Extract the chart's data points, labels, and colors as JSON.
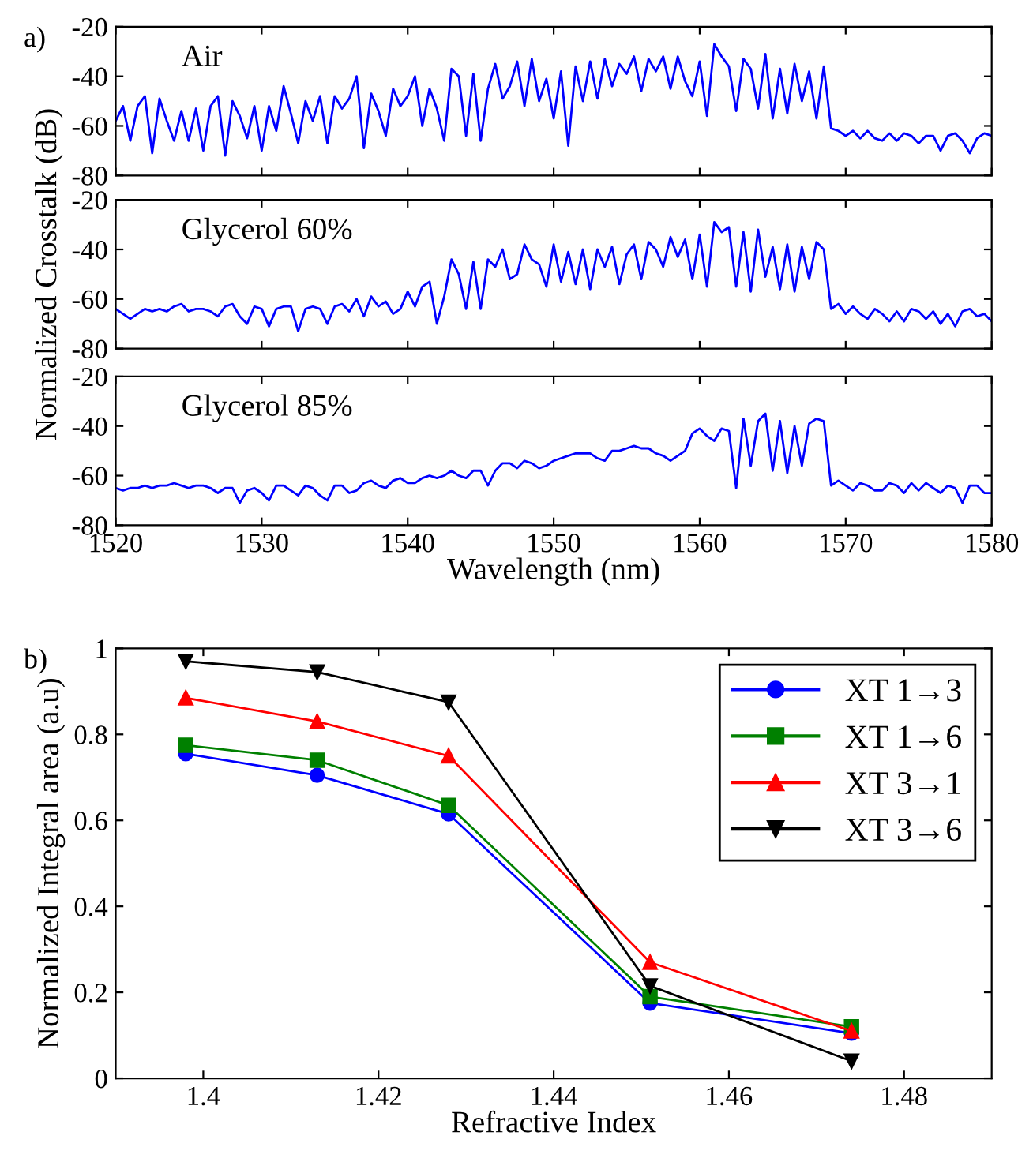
{
  "chart_data": [
    {
      "type": "line",
      "annotations": [
        "a)",
        "Air"
      ],
      "xlim": [
        1520,
        1580
      ],
      "ylim": [
        -80,
        -20
      ],
      "xticks": [
        1520,
        1530,
        1540,
        1550,
        1560,
        1570,
        1580
      ],
      "yticks": [
        -80,
        -60,
        -40,
        -20
      ],
      "tick_labels": "y",
      "grid": false,
      "legend": false,
      "marker": "none",
      "line_style": "solid",
      "x": [
        1520,
        1520.5,
        1521,
        1521.5,
        1522,
        1522.5,
        1523,
        1523.5,
        1524,
        1524.5,
        1525,
        1525.5,
        1526,
        1526.5,
        1527,
        1527.5,
        1528,
        1528.5,
        1529,
        1529.5,
        1530,
        1530.5,
        1531,
        1531.5,
        1532,
        1532.5,
        1533,
        1533.5,
        1534,
        1534.5,
        1535,
        1535.5,
        1536,
        1536.5,
        1537,
        1537.5,
        1538,
        1538.5,
        1539,
        1539.5,
        1540,
        1540.5,
        1541,
        1541.5,
        1542,
        1542.5,
        1543,
        1543.5,
        1544,
        1544.5,
        1545,
        1545.5,
        1546,
        1546.5,
        1547,
        1547.5,
        1548,
        1548.5,
        1549,
        1549.5,
        1550,
        1550.5,
        1551,
        1551.5,
        1552,
        1552.5,
        1553,
        1553.5,
        1554,
        1554.5,
        1555,
        1555.5,
        1556,
        1556.5,
        1557,
        1557.5,
        1558,
        1558.5,
        1559,
        1559.5,
        1560,
        1560.5,
        1561,
        1561.5,
        1562,
        1562.5,
        1563,
        1563.5,
        1564,
        1564.5,
        1565,
        1565.5,
        1566,
        1566.5,
        1567,
        1567.5,
        1568,
        1568.5,
        1569,
        1569.5,
        1570,
        1570.5,
        1571,
        1571.5,
        1572,
        1572.5,
        1573,
        1573.5,
        1574,
        1574.5,
        1575,
        1575.5,
        1576,
        1576.5,
        1577,
        1577.5,
        1578,
        1578.5,
        1579,
        1579.5,
        1580
      ],
      "series": [
        {
          "color": "#0000ff",
          "values": [
            -58,
            -52,
            -66,
            -52,
            -48,
            -71,
            -49,
            -58,
            -66,
            -54,
            -66,
            -53,
            -70,
            -52,
            -48,
            -72,
            -50,
            -56,
            -65,
            -52,
            -70,
            -52,
            -62,
            -44,
            -55,
            -67,
            -50,
            -58,
            -48,
            -67,
            -48,
            -53,
            -49,
            -40,
            -69,
            -47,
            -54,
            -64,
            -45,
            -52,
            -48,
            -40,
            -60,
            -45,
            -53,
            -66,
            -37,
            -40,
            -64,
            -39,
            -66,
            -45,
            -35,
            -49,
            -44,
            -34,
            -52,
            -33,
            -50,
            -41,
            -57,
            -38,
            -68,
            -36,
            -50,
            -34,
            -49,
            -33,
            -44,
            -35,
            -39,
            -32,
            -46,
            -33,
            -38,
            -32,
            -45,
            -32,
            -42,
            -48,
            -34,
            -56,
            -27,
            -32,
            -36,
            -54,
            -33,
            -37,
            -53,
            -31,
            -57,
            -37,
            -55,
            -35,
            -50,
            -38,
            -57,
            -36,
            -61,
            -62,
            -64,
            -62,
            -65,
            -62,
            -65,
            -66,
            -63,
            -66,
            -63,
            -64,
            -67,
            -64,
            -64,
            -70,
            -64,
            -63,
            -66,
            -71,
            -65,
            -63,
            -64
          ]
        }
      ]
    },
    {
      "type": "line",
      "annotations": [
        "Glycerol 60%"
      ],
      "ylabel": "Normalized Crosstalk (dB)",
      "xlim": [
        1520,
        1580
      ],
      "ylim": [
        -80,
        -20
      ],
      "xticks": [
        1520,
        1530,
        1540,
        1550,
        1560,
        1570,
        1580
      ],
      "yticks": [
        -80,
        -60,
        -40,
        -20
      ],
      "tick_labels": "y",
      "grid": false,
      "legend": false,
      "marker": "none",
      "line_style": "solid",
      "x": [
        1520,
        1520.5,
        1521,
        1521.5,
        1522,
        1522.5,
        1523,
        1523.5,
        1524,
        1524.5,
        1525,
        1525.5,
        1526,
        1526.5,
        1527,
        1527.5,
        1528,
        1528.5,
        1529,
        1529.5,
        1530,
        1530.5,
        1531,
        1531.5,
        1532,
        1532.5,
        1533,
        1533.5,
        1534,
        1534.5,
        1535,
        1535.5,
        1536,
        1536.5,
        1537,
        1537.5,
        1538,
        1538.5,
        1539,
        1539.5,
        1540,
        1540.5,
        1541,
        1541.5,
        1542,
        1542.5,
        1543,
        1543.5,
        1544,
        1544.5,
        1545,
        1545.5,
        1546,
        1546.5,
        1547,
        1547.5,
        1548,
        1548.5,
        1549,
        1549.5,
        1550,
        1550.5,
        1551,
        1551.5,
        1552,
        1552.5,
        1553,
        1553.5,
        1554,
        1554.5,
        1555,
        1555.5,
        1556,
        1556.5,
        1557,
        1557.5,
        1558,
        1558.5,
        1559,
        1559.5,
        1560,
        1560.5,
        1561,
        1561.5,
        1562,
        1562.5,
        1563,
        1563.5,
        1564,
        1564.5,
        1565,
        1565.5,
        1566,
        1566.5,
        1567,
        1567.5,
        1568,
        1568.5,
        1569,
        1569.5,
        1570,
        1570.5,
        1571,
        1571.5,
        1572,
        1572.5,
        1573,
        1573.5,
        1574,
        1574.5,
        1575,
        1575.5,
        1576,
        1576.5,
        1577,
        1577.5,
        1578,
        1578.5,
        1579,
        1579.5,
        1580
      ],
      "series": [
        {
          "color": "#0000ff",
          "values": [
            -64,
            -66,
            -68,
            -66,
            -64,
            -65,
            -64,
            -65,
            -63,
            -62,
            -65,
            -64,
            -64,
            -65,
            -67,
            -63,
            -62,
            -67,
            -70,
            -63,
            -64,
            -71,
            -64,
            -63,
            -63,
            -73,
            -64,
            -63,
            -64,
            -70,
            -63,
            -62,
            -65,
            -60,
            -67,
            -59,
            -63,
            -61,
            -66,
            -64,
            -57,
            -63,
            -55,
            -53,
            -70,
            -59,
            -44,
            -50,
            -64,
            -45,
            -64,
            -44,
            -47,
            -40,
            -52,
            -50,
            -38,
            -44,
            -46,
            -55,
            -38,
            -53,
            -41,
            -54,
            -40,
            -56,
            -40,
            -47,
            -39,
            -54,
            -42,
            -38,
            -52,
            -37,
            -40,
            -47,
            -35,
            -43,
            -36,
            -52,
            -34,
            -55,
            -29,
            -33,
            -31,
            -55,
            -33,
            -57,
            -32,
            -51,
            -39,
            -56,
            -38,
            -57,
            -39,
            -52,
            -37,
            -40,
            -64,
            -62,
            -66,
            -63,
            -66,
            -68,
            -64,
            -66,
            -69,
            -65,
            -69,
            -64,
            -65,
            -68,
            -65,
            -70,
            -66,
            -71,
            -65,
            -64,
            -67,
            -66,
            -69
          ]
        }
      ]
    },
    {
      "type": "line",
      "annotations": [
        "Glycerol 85%"
      ],
      "xlabel": "Wavelength (nm)",
      "xlim": [
        1520,
        1580
      ],
      "ylim": [
        -80,
        -20
      ],
      "xticks": [
        1520,
        1530,
        1540,
        1550,
        1560,
        1570,
        1580
      ],
      "yticks": [
        -80,
        -60,
        -40,
        -20
      ],
      "grid": false,
      "legend": false,
      "marker": "none",
      "line_style": "solid",
      "x": [
        1520,
        1520.5,
        1521,
        1521.5,
        1522,
        1522.5,
        1523,
        1523.5,
        1524,
        1524.5,
        1525,
        1525.5,
        1526,
        1526.5,
        1527,
        1527.5,
        1528,
        1528.5,
        1529,
        1529.5,
        1530,
        1530.5,
        1531,
        1531.5,
        1532,
        1532.5,
        1533,
        1533.5,
        1534,
        1534.5,
        1535,
        1535.5,
        1536,
        1536.5,
        1537,
        1537.5,
        1538,
        1538.5,
        1539,
        1539.5,
        1540,
        1540.5,
        1541,
        1541.5,
        1542,
        1542.5,
        1543,
        1543.5,
        1544,
        1544.5,
        1545,
        1545.5,
        1546,
        1546.5,
        1547,
        1547.5,
        1548,
        1548.5,
        1549,
        1549.5,
        1550,
        1550.5,
        1551,
        1551.5,
        1552,
        1552.5,
        1553,
        1553.5,
        1554,
        1554.5,
        1555,
        1555.5,
        1556,
        1556.5,
        1557,
        1557.5,
        1558,
        1558.5,
        1559,
        1559.5,
        1560,
        1560.5,
        1561,
        1561.5,
        1562,
        1562.5,
        1563,
        1563.5,
        1564,
        1564.5,
        1565,
        1565.5,
        1566,
        1566.5,
        1567,
        1567.5,
        1568,
        1568.5,
        1569,
        1569.5,
        1570,
        1570.5,
        1571,
        1571.5,
        1572,
        1572.5,
        1573,
        1573.5,
        1574,
        1574.5,
        1575,
        1575.5,
        1576,
        1576.5,
        1577,
        1577.5,
        1578,
        1578.5,
        1579,
        1579.5,
        1580
      ],
      "series": [
        {
          "color": "#0000ff",
          "values": [
            -65,
            -66,
            -65,
            -65,
            -64,
            -65,
            -64,
            -64,
            -63,
            -64,
            -65,
            -64,
            -64,
            -65,
            -67,
            -65,
            -65,
            -71,
            -66,
            -65,
            -67,
            -70,
            -64,
            -64,
            -66,
            -68,
            -64,
            -65,
            -68,
            -70,
            -64,
            -64,
            -67,
            -66,
            -63,
            -62,
            -64,
            -65,
            -62,
            -61,
            -63,
            -63,
            -61,
            -60,
            -61,
            -60,
            -58,
            -60,
            -61,
            -58,
            -58,
            -64,
            -58,
            -55,
            -55,
            -57,
            -54,
            -55,
            -57,
            -56,
            -54,
            -53,
            -52,
            -51,
            -51,
            -51,
            -53,
            -54,
            -50,
            -50,
            -49,
            -48,
            -49,
            -49,
            -51,
            -52,
            -54,
            -52,
            -50,
            -43,
            -41,
            -44,
            -46,
            -41,
            -42,
            -65,
            -37,
            -56,
            -38,
            -35,
            -58,
            -38,
            -59,
            -40,
            -56,
            -39,
            -37,
            -38,
            -64,
            -62,
            -64,
            -66,
            -63,
            -64,
            -66,
            -66,
            -63,
            -64,
            -67,
            -63,
            -66,
            -63,
            -65,
            -67,
            -64,
            -65,
            -71,
            -64,
            -64,
            -67,
            -67
          ]
        }
      ]
    },
    {
      "type": "line",
      "annotations": [
        "b)"
      ],
      "xlabel": "Refractive Index",
      "ylabel": "Normalized Integral area (a.u)",
      "x": [
        1.398,
        1.413,
        1.428,
        1.451,
        1.474
      ],
      "xlim": [
        1.39,
        1.49
      ],
      "ylim": [
        0,
        1
      ],
      "xticks": [
        1.4,
        1.42,
        1.44,
        1.46,
        1.48
      ],
      "yticks": [
        0,
        0.2,
        0.4,
        0.6,
        0.8,
        1
      ],
      "grid": false,
      "legend": "top right",
      "line_style": "solid",
      "series": [
        {
          "name": "XT 1→3",
          "color": "#0000ff",
          "marker": "circle",
          "values": [
            0.755,
            0.705,
            0.615,
            0.175,
            0.105
          ]
        },
        {
          "name": "XT 1→6",
          "color": "#008000",
          "marker": "square",
          "values": [
            0.775,
            0.74,
            0.635,
            0.19,
            0.12
          ]
        },
        {
          "name": "XT 3→1",
          "color": "#ff0000",
          "marker": "triangle",
          "values": [
            0.885,
            0.83,
            0.75,
            0.27,
            0.11
          ]
        },
        {
          "name": "XT 3→6",
          "color": "#000000",
          "marker": "triangle_down",
          "values": [
            0.97,
            0.945,
            0.875,
            0.215,
            0.04
          ]
        }
      ]
    }
  ]
}
